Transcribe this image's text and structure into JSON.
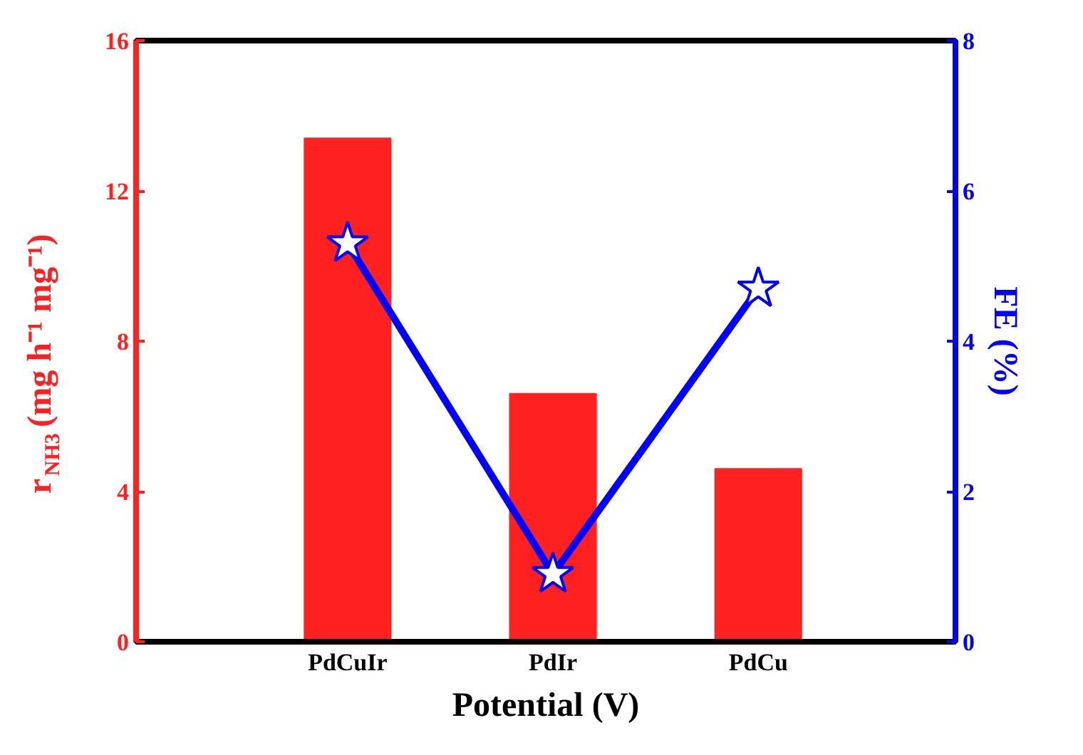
{
  "chart_data": {
    "type": "bar",
    "categories": [
      "PdCuIr",
      "PdIr",
      "PdCu"
    ],
    "xlabel": "Potential (V)",
    "ylabel": "r$_{NH3}$ (mg h⁻¹ mg⁻¹)",
    "y2label": "FE (%)",
    "series": [
      {
        "type": "bar",
        "color": "#ff2020",
        "values": [
          13.4,
          6.6,
          4.6
        ]
      },
      {
        "type": "line",
        "axis": "y2",
        "color": "#0000ff",
        "marker": "star",
        "line_style": "solid",
        "values": [
          5.3,
          0.9,
          4.7
        ]
      }
    ],
    "ylim": [
      0,
      16
    ],
    "yticks": [
      0,
      4,
      8,
      12,
      16
    ],
    "y2lim": [
      0,
      8
    ],
    "y2ticks": [
      0,
      2,
      4,
      6,
      8
    ]
  }
}
